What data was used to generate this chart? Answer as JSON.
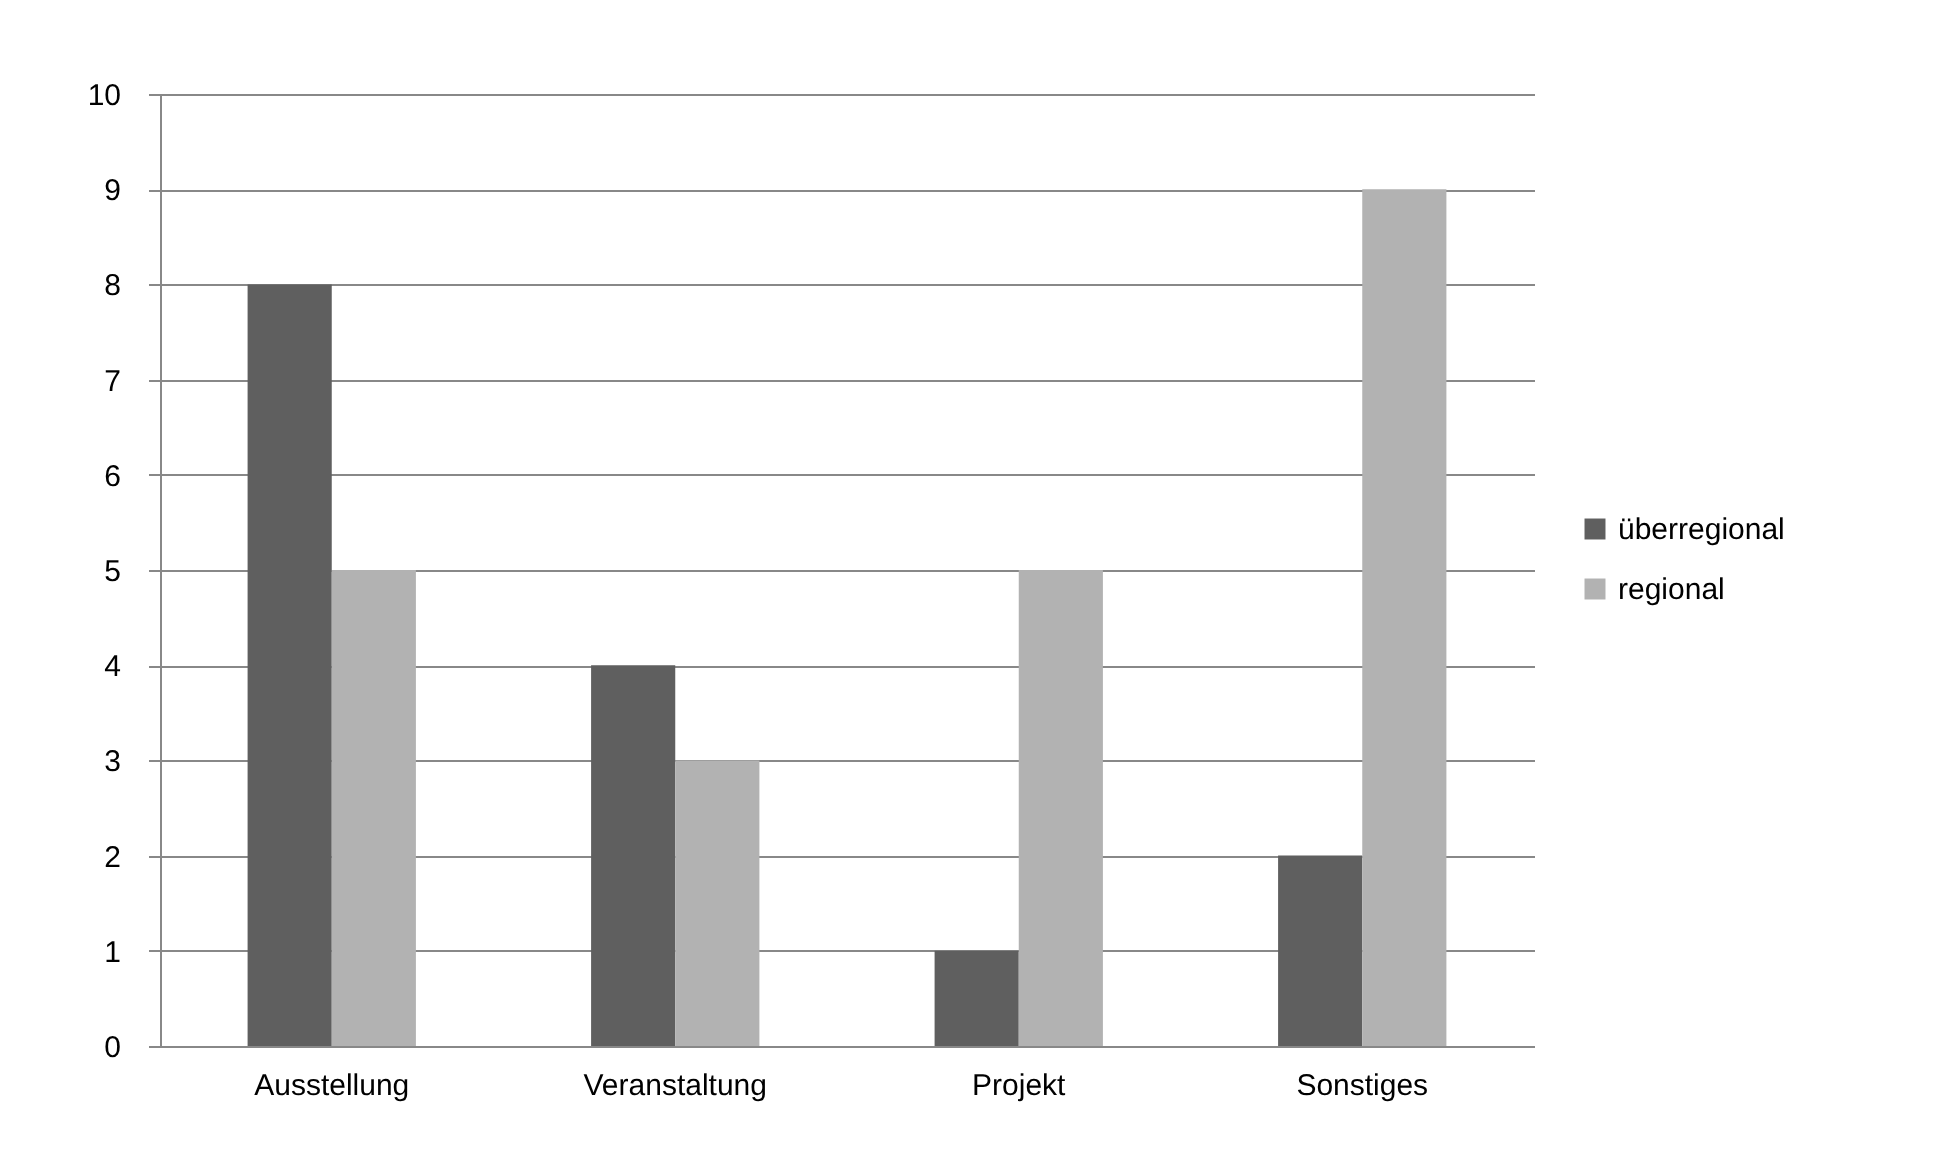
{
  "chart_data": {
    "type": "bar",
    "categories": [
      "Ausstellung",
      "Veranstaltung",
      "Projekt",
      "Sonstiges"
    ],
    "series": [
      {
        "name": "überregional",
        "color": "#5f5f5f",
        "values": [
          8,
          4,
          1,
          2
        ]
      },
      {
        "name": "regional",
        "color": "#b2b2b2",
        "values": [
          5,
          3,
          5,
          9
        ]
      }
    ],
    "ylim": [
      0,
      10
    ],
    "yticks": [
      0,
      1,
      2,
      3,
      4,
      5,
      6,
      7,
      8,
      9,
      10
    ],
    "grid": "y",
    "legend": "right"
  }
}
